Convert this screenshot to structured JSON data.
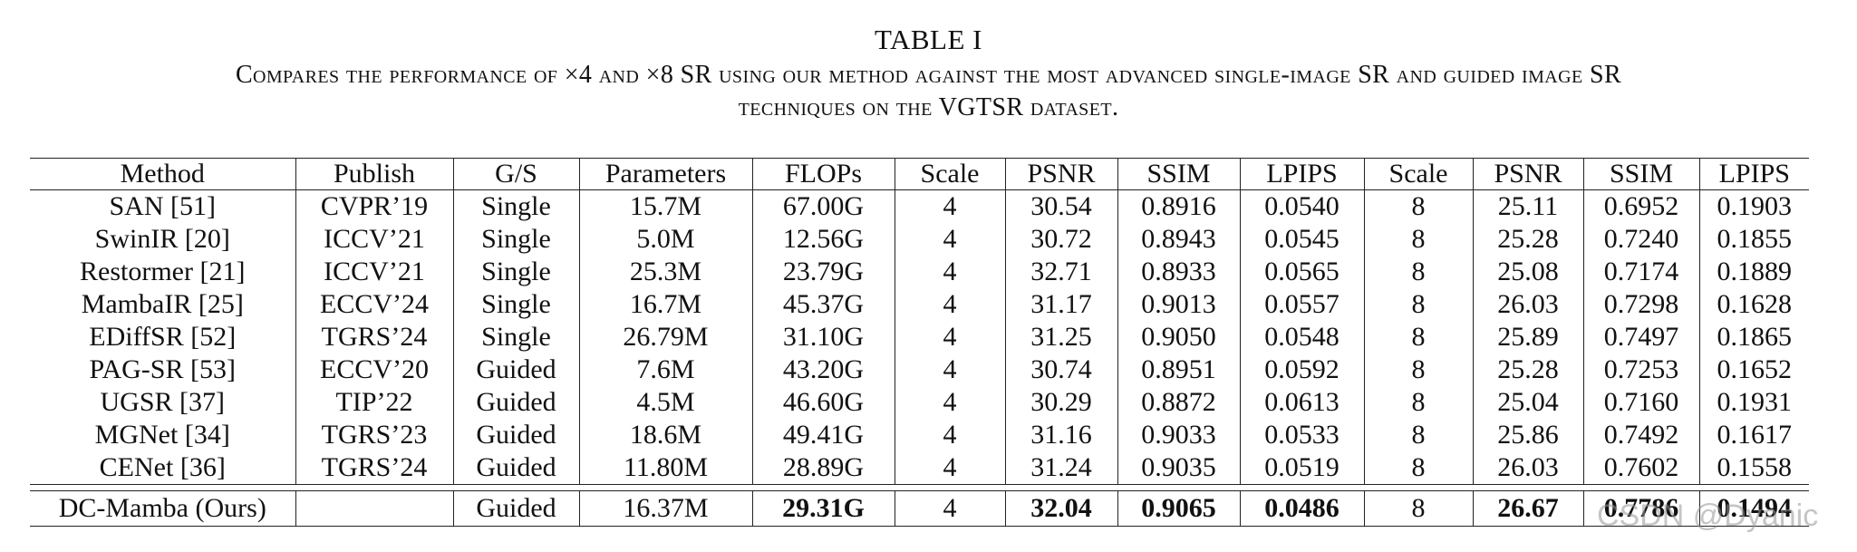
{
  "caption": {
    "label": "TABLE I",
    "line1": "Compares the performance of ×4 and ×8 SR using our method against the most advanced single-image SR and guided image SR",
    "line2": "techniques on the VGTSR dataset."
  },
  "table": {
    "headers": [
      "Method",
      "Publish",
      "G/S",
      "Parameters",
      "FLOPs",
      "Scale",
      "PSNR",
      "SSIM",
      "LPIPS",
      "Scale",
      "PSNR",
      "SSIM",
      "LPIPS"
    ],
    "rows": [
      [
        "SAN [51]",
        "CVPR’19",
        "Single",
        "15.7M",
        "67.00G",
        "4",
        "30.54",
        "0.8916",
        "0.0540",
        "8",
        "25.11",
        "0.6952",
        "0.1903"
      ],
      [
        "SwinIR [20]",
        "ICCV’21",
        "Single",
        "5.0M",
        "12.56G",
        "4",
        "30.72",
        "0.8943",
        "0.0545",
        "8",
        "25.28",
        "0.7240",
        "0.1855"
      ],
      [
        "Restormer [21]",
        "ICCV’21",
        "Single",
        "25.3M",
        "23.79G",
        "4",
        "32.71",
        "0.8933",
        "0.0565",
        "8",
        "25.08",
        "0.7174",
        "0.1889"
      ],
      [
        "MambaIR [25]",
        "ECCV’24",
        "Single",
        "16.7M",
        "45.37G",
        "4",
        "31.17",
        "0.9013",
        "0.0557",
        "8",
        "26.03",
        "0.7298",
        "0.1628"
      ],
      [
        "EDiffSR [52]",
        "TGRS’24",
        "Single",
        "26.79M",
        "31.10G",
        "4",
        "31.25",
        "0.9050",
        "0.0548",
        "8",
        "25.89",
        "0.7497",
        "0.1865"
      ],
      [
        "PAG-SR [53]",
        "ECCV’20",
        "Guided",
        "7.6M",
        "43.20G",
        "4",
        "30.74",
        "0.8951",
        "0.0592",
        "8",
        "25.28",
        "0.7253",
        "0.1652"
      ],
      [
        "UGSR [37]",
        "TIP’22",
        "Guided",
        "4.5M",
        "46.60G",
        "4",
        "30.29",
        "0.8872",
        "0.0613",
        "8",
        "25.04",
        "0.7160",
        "0.1931"
      ],
      [
        "MGNet [34]",
        "TGRS’23",
        "Guided",
        "18.6M",
        "49.41G",
        "4",
        "31.16",
        "0.9033",
        "0.0533",
        "8",
        "25.86",
        "0.7492",
        "0.1617"
      ],
      [
        "CENet [36]",
        "TGRS’24",
        "Guided",
        "11.80M",
        "28.89G",
        "4",
        "31.24",
        "0.9035",
        "0.0519",
        "8",
        "26.03",
        "0.7602",
        "0.1558"
      ]
    ],
    "ours": [
      "DC-Mamba (Ours)",
      "",
      "Guided",
      "16.37M",
      "29.31G",
      "4",
      "32.04",
      "0.9065",
      "0.0486",
      "8",
      "26.67",
      "0.7786",
      "0.1494"
    ],
    "ours_bold_columns": [
      4,
      6,
      7,
      8,
      10,
      11,
      12
    ]
  },
  "watermark": "CSDN @Dyanic"
}
